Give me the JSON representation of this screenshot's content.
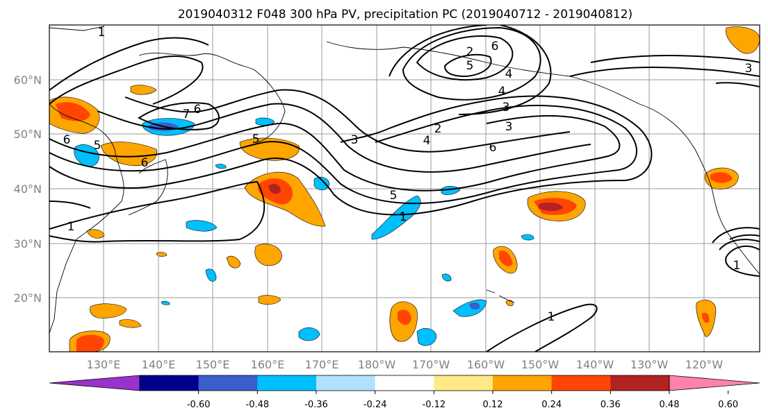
{
  "title": "2019040312 F048 300 hPa PV, precipitation PC (2019040712 - 2019040812)",
  "map": {
    "lat_ticks": [
      "60°N",
      "50°N",
      "40°N",
      "30°N",
      "20°N"
    ],
    "lon_ticks": [
      "130°E",
      "140°E",
      "150°E",
      "160°E",
      "170°E",
      "180°W",
      "170°W",
      "160°W",
      "150°W",
      "140°W",
      "130°W",
      "120°W"
    ],
    "gridline_color": "#999999",
    "grid": true
  },
  "contour_labels": [
    "1",
    "2",
    "3",
    "4",
    "5",
    "6",
    "7",
    "6",
    "5",
    "3",
    "2",
    "4",
    "3",
    "6",
    "5",
    "1",
    "6",
    "4",
    "1",
    "5",
    "6",
    "1",
    "3",
    "1"
  ],
  "colorbar": {
    "ticks": [
      "-0.60",
      "-0.48",
      "-0.36",
      "-0.24",
      "-0.12",
      "0.12",
      "0.24",
      "0.36",
      "0.48",
      "0.60"
    ],
    "colors": [
      "#9932cc",
      "#00008b",
      "#3a5fcd",
      "#00bfff",
      "#b0e2ff",
      "#ffffff",
      "#ffe985",
      "#ffa500",
      "#ff4500",
      "#b22222",
      "#ff82ab"
    ]
  },
  "chart_data": {
    "type": "heatmap",
    "title": "2019040312 F048 300 hPa PV, precipitation PC (2019040712 - 2019040812)",
    "fields": [
      "300 hPa PV (contours)",
      "precipitation PC (filled)"
    ],
    "colorbar_levels": [
      -0.6,
      -0.48,
      -0.36,
      -0.24,
      -0.12,
      0.12,
      0.24,
      0.36,
      0.48,
      0.6
    ],
    "extend": "both",
    "lon_range": [
      "120°E",
      "245°E"
    ],
    "lat_range": [
      10,
      70
    ]
  }
}
